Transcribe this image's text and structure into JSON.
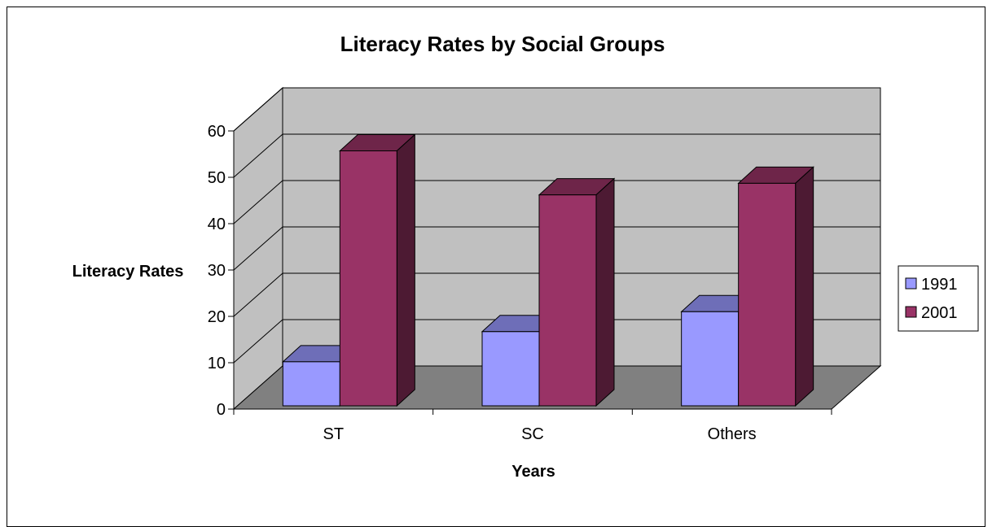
{
  "chart_data": {
    "type": "bar",
    "title": "Literacy Rates by Social Groups",
    "xlabel": "Years",
    "ylabel": "Literacy Rates",
    "categories": [
      "ST",
      "SC",
      "Others"
    ],
    "series": [
      {
        "name": "1991",
        "values": [
          9.5,
          16,
          20.3
        ],
        "color": "#9999ff"
      },
      {
        "name": "2001",
        "values": [
          55,
          45.5,
          48
        ],
        "color": "#993366"
      }
    ],
    "ylim": [
      0,
      60
    ],
    "yticks": [
      "0",
      "10",
      "20",
      "30",
      "40",
      "50",
      "60"
    ],
    "grid": true,
    "legend_position": "right",
    "style": "3d-clustered-column",
    "colors": {
      "back_wall": "#c0c0c0",
      "side_wall": "#c0c0c0",
      "floor": "#808080",
      "gridline": "#000000"
    }
  }
}
